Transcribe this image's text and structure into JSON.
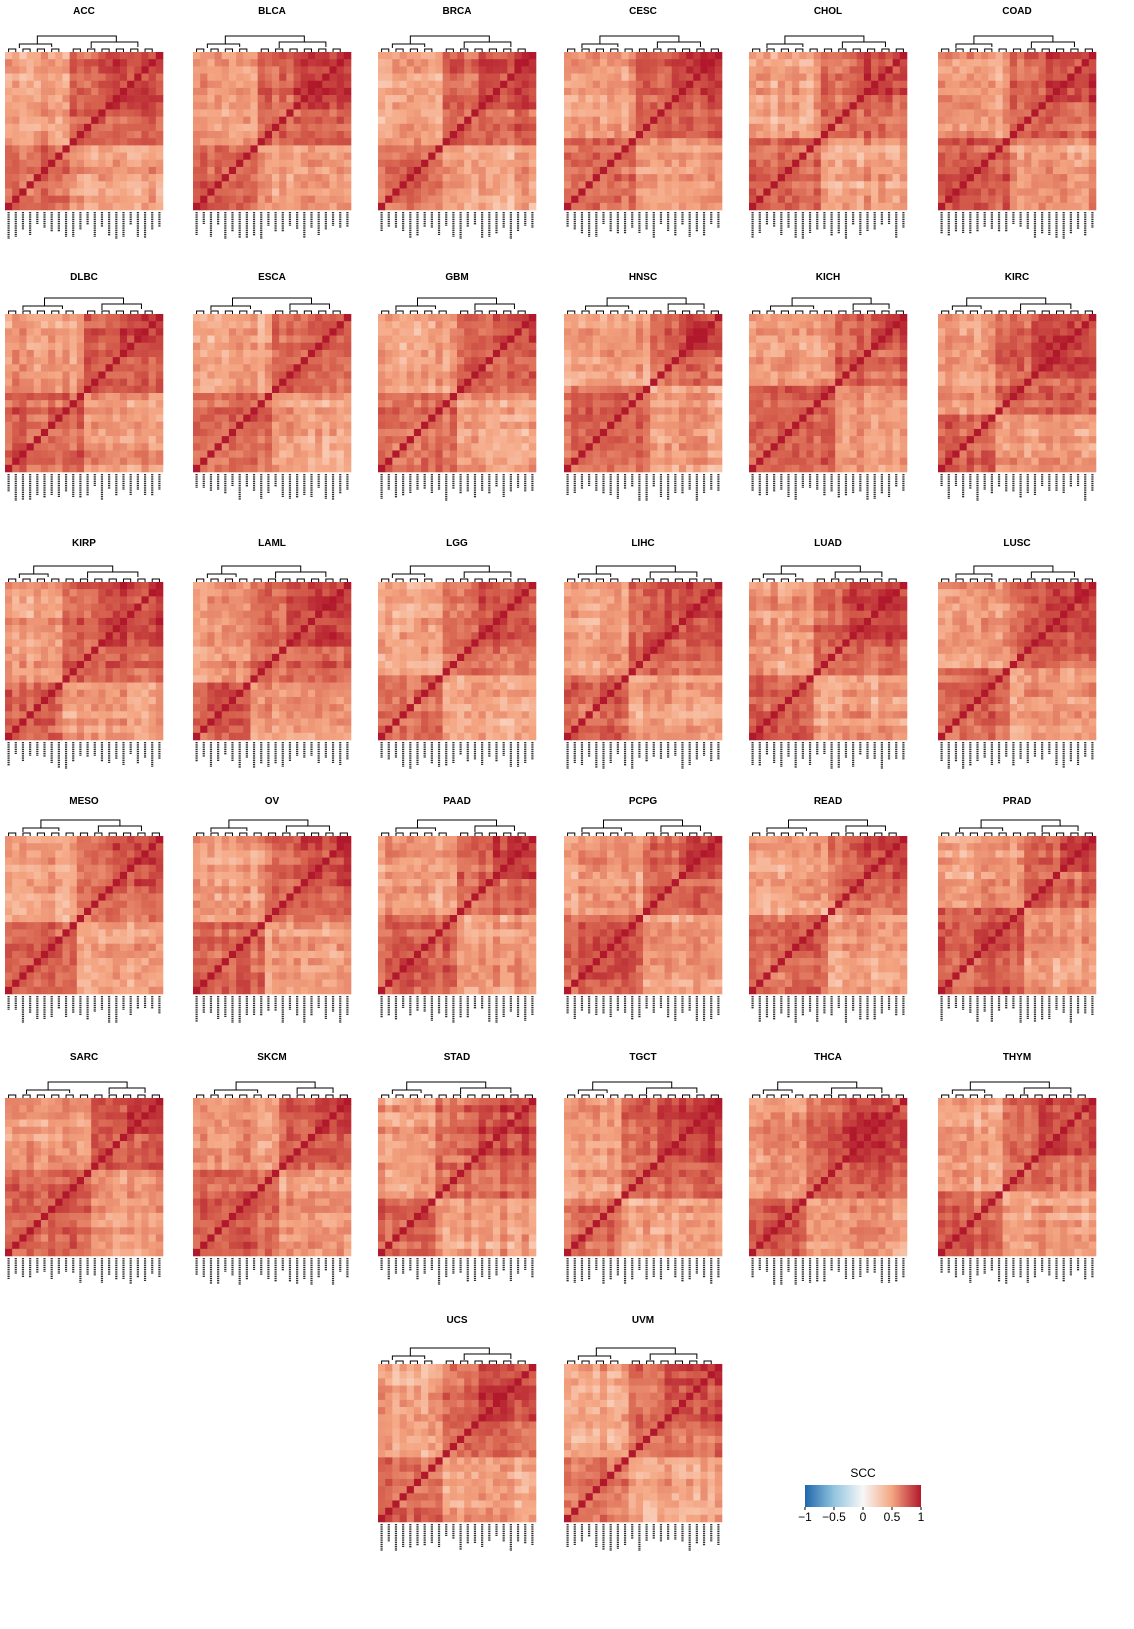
{
  "chart_data": {
    "type": "heatmap",
    "panel_titles": [
      "ACC",
      "BLCA",
      "BRCA",
      "CESC",
      "CHOL",
      "COAD",
      "DLBC",
      "ESCA",
      "GBM",
      "HNSC",
      "KICH",
      "KIRC",
      "KIRP",
      "LAML",
      "LGG",
      "LIHC",
      "LUAD",
      "LUSC",
      "MESO",
      "OV",
      "PAAD",
      "PCPG",
      "READ",
      "PRAD",
      "SARC",
      "SKCM",
      "STAD",
      "TGCT",
      "THCA",
      "THYM",
      "UCS",
      "UVM"
    ],
    "legend": {
      "title": "SCC",
      "tick_labels": [
        "−1",
        "−0.5",
        "0",
        "0.5",
        "1"
      ],
      "range": [
        -1,
        1
      ],
      "colors": [
        "#2166ac",
        "#d1e5f0",
        "#f7f7f7",
        "#f4a582",
        "#b2182b"
      ]
    },
    "colors": {
      "low": "#2166ac",
      "mid": "#f7f7f7",
      "high": "#b2182b",
      "diagonal": "#b2182b"
    }
  }
}
